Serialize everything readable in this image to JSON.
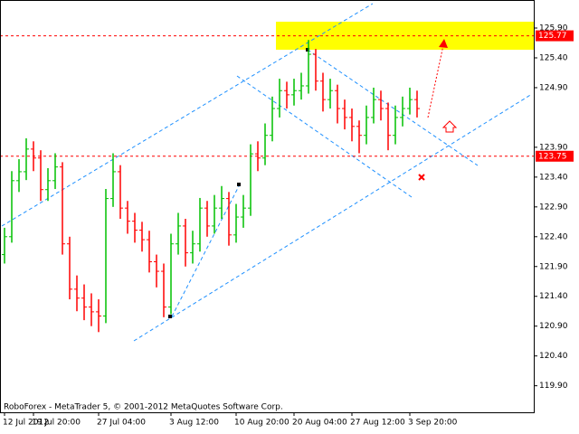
{
  "chart_data": {
    "type": "ohlc",
    "footer": "RoboForex - MetaTrader 5, © 2001-2012 MetaQuotes Software Corp.",
    "categories": [
      "12 Jul 2012",
      null,
      null,
      null,
      "19 Jul 20:00",
      null,
      null,
      null,
      null,
      null,
      null,
      null,
      null,
      "27 Jul 04:00",
      null,
      null,
      null,
      null,
      null,
      null,
      null,
      null,
      null,
      "3 Aug 12:00",
      null,
      null,
      null,
      null,
      null,
      null,
      null,
      null,
      "10 Aug 20:00",
      null,
      null,
      null,
      null,
      null,
      null,
      null,
      "20 Aug 04:00",
      null,
      null,
      null,
      null,
      null,
      null,
      null,
      "27 Aug 12:00",
      null,
      null,
      null,
      null,
      null,
      null,
      null,
      "3 Sep 20:00",
      null
    ],
    "open": [
      122.1,
      122.4,
      123.34,
      123.49,
      123.87,
      123.72,
      123.19,
      123.34,
      123.57,
      122.28,
      121.52,
      121.37,
      121.22,
      121.14,
      121.07,
      123.04,
      123.49,
      122.88,
      122.66,
      122.51,
      122.35,
      121.98,
      121.82,
      121.22,
      122.28,
      122.58,
      122.13,
      122.28,
      122.88,
      122.58,
      122.88,
      123.04,
      122.43,
      122.73,
      122.88,
      123.79,
      123.72,
      124.1,
      124.55,
      124.85,
      124.78,
      124.85,
      124.93,
      125.46,
      125.01,
      124.7,
      124.85,
      124.55,
      124.4,
      124.25,
      124.1,
      124.4,
      124.7,
      124.55,
      124.1,
      124.4,
      124.55,
      124.7
    ],
    "high": [
      122.55,
      123.5,
      123.7,
      124.05,
      124.0,
      123.85,
      123.55,
      123.8,
      123.65,
      122.4,
      121.75,
      121.6,
      121.45,
      121.35,
      123.2,
      123.8,
      123.6,
      123.0,
      122.8,
      122.65,
      122.5,
      122.1,
      121.95,
      122.45,
      122.8,
      122.7,
      122.5,
      123.05,
      123.0,
      123.1,
      123.25,
      123.15,
      122.95,
      123.1,
      123.95,
      124.0,
      124.3,
      124.75,
      125.05,
      125.0,
      125.05,
      125.15,
      125.7,
      125.55,
      125.15,
      125.05,
      124.95,
      124.7,
      124.55,
      124.35,
      124.6,
      124.9,
      124.85,
      124.65,
      124.6,
      124.75,
      124.9,
      124.85
    ],
    "low": [
      121.95,
      122.3,
      123.15,
      123.35,
      123.5,
      123.0,
      123.0,
      123.2,
      122.1,
      121.35,
      121.15,
      121.0,
      120.9,
      120.8,
      120.95,
      122.9,
      122.7,
      122.45,
      122.3,
      122.15,
      121.8,
      121.55,
      121.05,
      121.1,
      122.1,
      121.9,
      121.95,
      122.15,
      122.4,
      122.45,
      122.7,
      122.25,
      122.3,
      122.55,
      122.75,
      123.5,
      123.6,
      124.0,
      124.4,
      124.55,
      124.6,
      124.7,
      124.8,
      124.85,
      124.5,
      124.55,
      124.3,
      124.2,
      124.0,
      123.8,
      123.95,
      124.3,
      124.35,
      123.85,
      123.95,
      124.25,
      124.45,
      124.4
    ],
    "close": [
      122.4,
      123.34,
      123.49,
      123.87,
      123.72,
      123.19,
      123.34,
      123.57,
      122.28,
      121.52,
      121.37,
      121.22,
      121.14,
      121.07,
      123.04,
      123.49,
      122.88,
      122.66,
      122.51,
      122.35,
      121.98,
      121.82,
      121.22,
      122.28,
      122.58,
      122.13,
      122.28,
      122.88,
      122.58,
      122.88,
      123.04,
      122.43,
      122.73,
      122.88,
      123.79,
      123.72,
      124.1,
      124.55,
      124.85,
      124.78,
      124.85,
      124.93,
      125.46,
      125.01,
      124.7,
      124.85,
      124.55,
      124.4,
      124.25,
      124.1,
      124.4,
      124.7,
      124.55,
      124.1,
      124.4,
      124.55,
      124.7,
      124.55
    ],
    "up_color": "#00c000",
    "down_color": "#ff0000",
    "ylim": [
      119.47,
      126.34
    ],
    "yticks": [
      {
        "value": 125.9,
        "label": "125.90"
      },
      {
        "value": 125.4,
        "label": "125.40"
      },
      {
        "value": 124.9,
        "label": "124.90"
      },
      {
        "value": 123.9,
        "label": "123.90"
      },
      {
        "value": 123.4,
        "label": "123.40"
      },
      {
        "value": 122.9,
        "label": "122.90"
      },
      {
        "value": 122.4,
        "label": "122.40"
      },
      {
        "value": 121.9,
        "label": "121.90"
      },
      {
        "value": 121.4,
        "label": "121.40"
      },
      {
        "value": 120.9,
        "label": "120.90"
      },
      {
        "value": 120.4,
        "label": "120.40"
      },
      {
        "value": 119.9,
        "label": "119.90"
      }
    ],
    "levels": [
      {
        "value": 125.77,
        "color": "#ff0000"
      },
      {
        "value": 123.75,
        "color": "#ff0000"
      }
    ]
  }
}
